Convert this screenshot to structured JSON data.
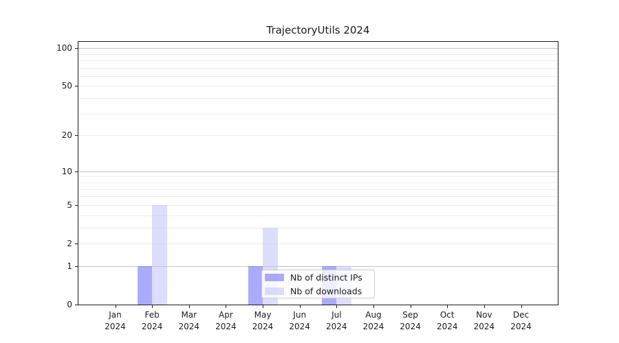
{
  "chart_data": {
    "type": "bar",
    "title": "TrajectoryUtils 2024",
    "categories": [
      "Jan 2024",
      "Feb 2024",
      "Mar 2024",
      "Apr 2024",
      "May 2024",
      "Jun 2024",
      "Jul 2024",
      "Aug 2024",
      "Sep 2024",
      "Oct 2024",
      "Nov 2024",
      "Dec 2024"
    ],
    "series": [
      {
        "name": "Nb of distinct IPs",
        "color": "rgba(102,102,248,0.55)",
        "values": [
          0,
          1,
          0,
          0,
          1,
          0,
          1,
          0,
          0,
          0,
          0,
          0
        ]
      },
      {
        "name": "Nb of downloads",
        "color": "rgba(187,187,250,0.5)",
        "values": [
          0,
          5,
          0,
          0,
          3,
          0,
          1,
          0,
          0,
          0,
          0,
          0
        ]
      }
    ],
    "xlabel": "",
    "ylabel": "",
    "scale": "log1p",
    "ylim": [
      0,
      112
    ],
    "yticks": [
      0,
      1,
      2,
      5,
      10,
      20,
      50,
      100
    ],
    "major_grid": [
      1,
      10,
      100
    ],
    "minor_grid": [
      2,
      3,
      4,
      5,
      6,
      7,
      8,
      9,
      20,
      30,
      40,
      50,
      60,
      70,
      80,
      90
    ],
    "grid": "on",
    "legend_position": "lower center",
    "colors": {
      "major_grid": "#c2c2c2",
      "minor_grid": "#ececec",
      "axis": "#1a1a1a",
      "background": "#ffffff"
    }
  }
}
